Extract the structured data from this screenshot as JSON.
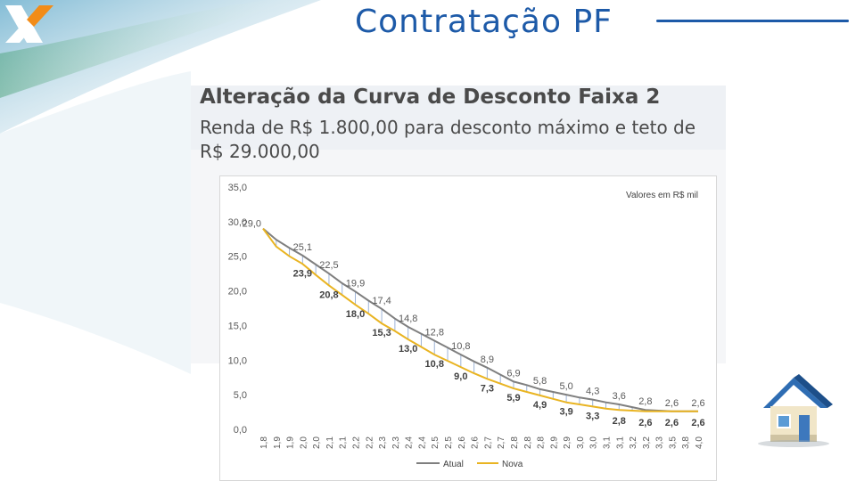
{
  "slide": {
    "title": "Contratação PF",
    "panel_heading": "Alteração da Curva de Desconto Faixa 2",
    "panel_subtitle": "Renda de R$ 1.800,00 para desconto máximo e teto de R$ 29.000,00"
  },
  "icons": {
    "logo": "caixa-x-logo-icon",
    "house": "house-icon"
  },
  "colors": {
    "title": "#1d5aa8",
    "atual": "#7f7f7f",
    "nova": "#e9b422",
    "hatch": "#9db3d6"
  },
  "chart_data": {
    "type": "line",
    "note": "Valores em R$ mil",
    "x": [
      "1,8",
      "1,9",
      "1,9",
      "2,0",
      "2,0",
      "2,1",
      "2,1",
      "2,2",
      "2,2",
      "2,3",
      "2,3",
      "2,4",
      "2,4",
      "2,5",
      "2,5",
      "2,6",
      "2,6",
      "2,7",
      "2,7",
      "2,8",
      "2,8",
      "2,8",
      "2,9",
      "2,9",
      "3,0",
      "3,0",
      "3,1",
      "3,1",
      "3,2",
      "3,2",
      "3,3",
      "3,5",
      "3,8",
      "4,0"
    ],
    "yticks": [
      "0,0",
      "5,0",
      "10,0",
      "15,0",
      "20,0",
      "25,0",
      "30,0",
      "35,0"
    ],
    "ylim": [
      0,
      35
    ],
    "series": [
      {
        "name": "Atual",
        "values": [
          29.0,
          27.4,
          26.2,
          25.1,
          23.8,
          22.5,
          21.1,
          19.9,
          18.6,
          17.4,
          16.0,
          14.8,
          13.8,
          12.8,
          11.8,
          10.8,
          9.8,
          8.9,
          7.9,
          6.9,
          6.4,
          5.8,
          5.4,
          5.0,
          4.6,
          4.3,
          3.9,
          3.6,
          3.2,
          2.8,
          2.7,
          2.6,
          2.6,
          2.6
        ]
      },
      {
        "name": "Nova",
        "values": [
          29.0,
          26.4,
          25.0,
          23.9,
          22.3,
          20.8,
          19.4,
          18.0,
          16.7,
          15.3,
          14.2,
          13.0,
          11.9,
          10.8,
          9.9,
          9.0,
          8.1,
          7.3,
          6.6,
          5.9,
          5.4,
          4.9,
          4.4,
          3.9,
          3.6,
          3.3,
          3.0,
          2.8,
          2.7,
          2.6,
          2.6,
          2.6,
          2.6,
          2.6
        ]
      }
    ],
    "labels": [
      {
        "series": "Atual",
        "index": 0,
        "text": "29,0"
      },
      {
        "series": "Atual",
        "index": 3,
        "text": "25,1"
      },
      {
        "series": "Atual",
        "index": 5,
        "text": "22,5"
      },
      {
        "series": "Atual",
        "index": 7,
        "text": "19,9"
      },
      {
        "series": "Atual",
        "index": 9,
        "text": "17,4"
      },
      {
        "series": "Atual",
        "index": 11,
        "text": "14,8"
      },
      {
        "series": "Atual",
        "index": 13,
        "text": "12,8"
      },
      {
        "series": "Atual",
        "index": 15,
        "text": "10,8"
      },
      {
        "series": "Atual",
        "index": 17,
        "text": "8,9"
      },
      {
        "series": "Atual",
        "index": 19,
        "text": "6,9"
      },
      {
        "series": "Atual",
        "index": 21,
        "text": "5,8"
      },
      {
        "series": "Atual",
        "index": 23,
        "text": "5,0"
      },
      {
        "series": "Atual",
        "index": 25,
        "text": "4,3"
      },
      {
        "series": "Atual",
        "index": 27,
        "text": "3,6"
      },
      {
        "series": "Atual",
        "index": 29,
        "text": "2,8"
      },
      {
        "series": "Atual",
        "index": 31,
        "text": "2,6"
      },
      {
        "series": "Atual",
        "index": 33,
        "text": "2,6"
      },
      {
        "series": "Nova",
        "index": 3,
        "text": "23,9"
      },
      {
        "series": "Nova",
        "index": 5,
        "text": "20,8"
      },
      {
        "series": "Nova",
        "index": 7,
        "text": "18,0"
      },
      {
        "series": "Nova",
        "index": 9,
        "text": "15,3"
      },
      {
        "series": "Nova",
        "index": 11,
        "text": "13,0"
      },
      {
        "series": "Nova",
        "index": 13,
        "text": "10,8"
      },
      {
        "series": "Nova",
        "index": 15,
        "text": "9,0"
      },
      {
        "series": "Nova",
        "index": 17,
        "text": "7,3"
      },
      {
        "series": "Nova",
        "index": 19,
        "text": "5,9"
      },
      {
        "series": "Nova",
        "index": 21,
        "text": "4,9"
      },
      {
        "series": "Nova",
        "index": 23,
        "text": "3,9"
      },
      {
        "series": "Nova",
        "index": 25,
        "text": "3,3"
      },
      {
        "series": "Nova",
        "index": 27,
        "text": "2,8"
      },
      {
        "series": "Nova",
        "index": 29,
        "text": "2,6"
      },
      {
        "series": "Nova",
        "index": 31,
        "text": "2,6"
      },
      {
        "series": "Nova",
        "index": 33,
        "text": "2,6"
      }
    ],
    "legend": "bottom",
    "grid": false
  }
}
